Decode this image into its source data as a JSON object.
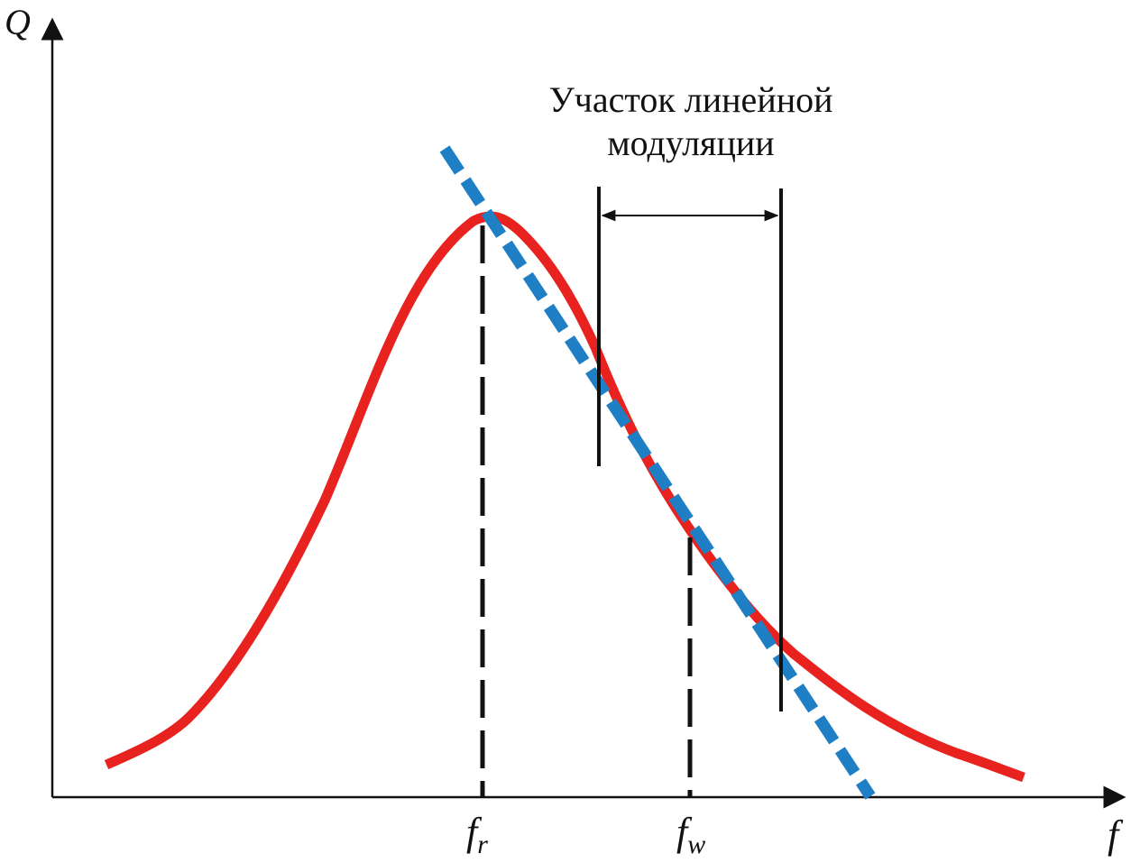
{
  "diagram": {
    "y_axis_label": "Q",
    "x_axis_label": "f",
    "marker_fr": {
      "base": "f",
      "sub": "r"
    },
    "marker_fw": {
      "base": "f",
      "sub": "w"
    },
    "annotation": {
      "line1": "Участок линейной",
      "line2": "модуляции"
    },
    "colors": {
      "curve": "#e8231f",
      "tangent": "#1f7fc4",
      "axis": "#111111",
      "guides": "#111111"
    }
  }
}
